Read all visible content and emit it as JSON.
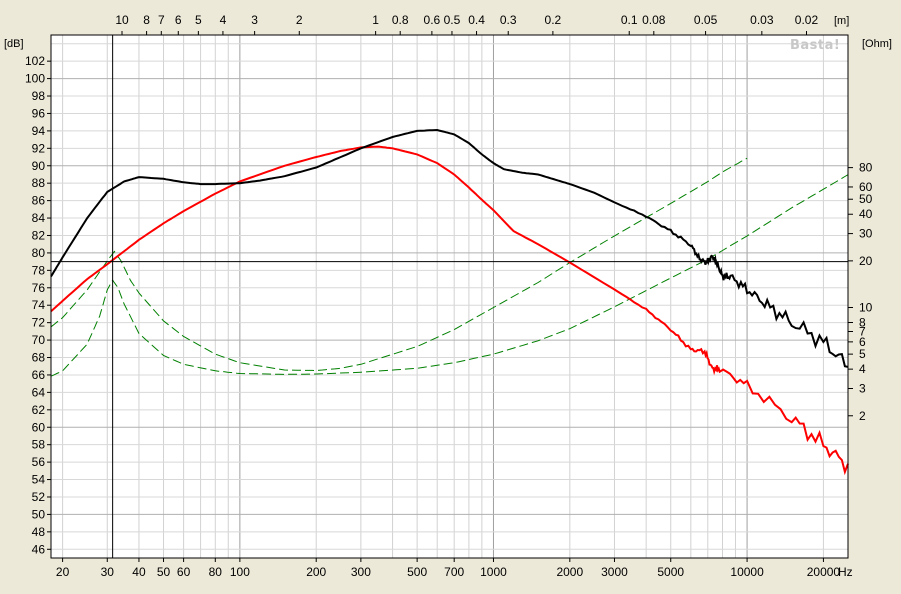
{
  "chart_data": {
    "type": "line",
    "title": "",
    "watermark": "Basta!",
    "x_axis": {
      "scale": "log",
      "range": [
        18,
        25000
      ],
      "unit_label": "Hz",
      "tick_labels": [
        "20",
        "30",
        "40",
        "50",
        "60",
        "80",
        "100",
        "200",
        "300",
        "500",
        "700",
        "1000",
        "2000",
        "3000",
        "5000",
        "10000",
        "20000"
      ],
      "tick_values": [
        20,
        30,
        40,
        50,
        60,
        80,
        100,
        200,
        300,
        500,
        700,
        1000,
        2000,
        3000,
        5000,
        10000,
        20000
      ]
    },
    "top_axis": {
      "unit_label": "[m]",
      "tick_labels": [
        "10",
        "8",
        "7",
        "6",
        "5",
        "4",
        "3",
        "2",
        "1",
        "0.8",
        "0.6",
        "0.5",
        "0.4",
        "0.3",
        "0.2",
        "0.1",
        "0.08",
        "0.05",
        "0.03",
        "0.02"
      ],
      "tick_values": [
        10,
        8,
        7,
        6,
        5,
        4,
        3,
        2,
        1,
        0.8,
        0.6,
        0.5,
        0.4,
        0.3,
        0.2,
        0.1,
        0.08,
        0.05,
        0.03,
        0.02
      ]
    },
    "y_axis_left": {
      "unit_label": "[dB]",
      "range": [
        45,
        105
      ],
      "tick_labels": [
        "46",
        "48",
        "50",
        "52",
        "54",
        "56",
        "58",
        "60",
        "62",
        "64",
        "66",
        "68",
        "70",
        "72",
        "74",
        "76",
        "78",
        "80",
        "82",
        "84",
        "86",
        "88",
        "90",
        "92",
        "94",
        "96",
        "98",
        "100",
        "102"
      ]
    },
    "y_axis_right": {
      "unit_label": "[Ohm]",
      "scale": "log",
      "tick_labels": [
        "2",
        "3",
        "4",
        "5",
        "6",
        "7",
        "8",
        "10",
        "20",
        "30",
        "40",
        "50",
        "60",
        "80"
      ],
      "tick_values": [
        2,
        3,
        4,
        5,
        6,
        7,
        8,
        10,
        20,
        30,
        40,
        50,
        60,
        80
      ]
    },
    "cursor": {
      "x": 31.5,
      "y": 79
    },
    "grid": true,
    "series": [
      {
        "color": "#000000",
        "style": "solid",
        "axis": "left",
        "noise": 0.35,
        "points": [
          [
            18,
            77.3
          ],
          [
            20,
            79.5
          ],
          [
            25,
            84
          ],
          [
            30,
            87
          ],
          [
            35,
            88.2
          ],
          [
            40,
            88.7
          ],
          [
            50,
            88.5
          ],
          [
            60,
            88.1
          ],
          [
            70,
            87.9
          ],
          [
            80,
            87.9
          ],
          [
            100,
            88
          ],
          [
            120,
            88.3
          ],
          [
            150,
            88.8
          ],
          [
            200,
            89.8
          ],
          [
            250,
            91
          ],
          [
            300,
            92
          ],
          [
            400,
            93.3
          ],
          [
            500,
            94
          ],
          [
            600,
            94.1
          ],
          [
            700,
            93.6
          ],
          [
            800,
            92.6
          ],
          [
            900,
            91.3
          ],
          [
            1000,
            90.3
          ],
          [
            1100,
            89.6
          ],
          [
            1300,
            89.2
          ],
          [
            1500,
            89
          ],
          [
            1800,
            88.3
          ],
          [
            2000,
            87.9
          ],
          [
            2500,
            86.9
          ],
          [
            3000,
            85.8
          ],
          [
            4000,
            84.2
          ],
          [
            5000,
            82.5
          ],
          [
            6000,
            80.9
          ],
          [
            6500,
            79.3
          ],
          [
            6900,
            78.9
          ],
          [
            7300,
            79.6
          ],
          [
            7600,
            78.8
          ],
          [
            8000,
            77.3
          ],
          [
            8600,
            77.3
          ],
          [
            10000,
            75.8
          ],
          [
            12000,
            74
          ],
          [
            15000,
            72
          ],
          [
            20000,
            69.8
          ],
          [
            25000,
            67
          ]
        ]
      },
      {
        "color": "#ff0000",
        "style": "solid",
        "axis": "left",
        "noise": 0.35,
        "points": [
          [
            18,
            73.3
          ],
          [
            20,
            74.5
          ],
          [
            25,
            77
          ],
          [
            30,
            78.7
          ],
          [
            40,
            81.5
          ],
          [
            50,
            83.4
          ],
          [
            60,
            84.8
          ],
          [
            80,
            86.8
          ],
          [
            100,
            88.2
          ],
          [
            150,
            90
          ],
          [
            200,
            91
          ],
          [
            250,
            91.7
          ],
          [
            300,
            92.1
          ],
          [
            350,
            92.2
          ],
          [
            400,
            92
          ],
          [
            500,
            91.3
          ],
          [
            600,
            90.3
          ],
          [
            700,
            89
          ],
          [
            800,
            87.5
          ],
          [
            900,
            86.1
          ],
          [
            1000,
            84.9
          ],
          [
            1200,
            82.5
          ],
          [
            1500,
            81
          ],
          [
            2000,
            78.9
          ],
          [
            3000,
            75.8
          ],
          [
            4000,
            73.5
          ],
          [
            5000,
            71.2
          ],
          [
            6000,
            68.9
          ],
          [
            6800,
            68.7
          ],
          [
            7300,
            66.7
          ],
          [
            7800,
            66.7
          ],
          [
            10000,
            64.8
          ],
          [
            15000,
            61
          ],
          [
            20000,
            58
          ],
          [
            25000,
            55.5
          ]
        ]
      },
      {
        "color": "#008000",
        "style": "dashed",
        "axis": "right",
        "points": [
          [
            18,
            3.6
          ],
          [
            20,
            3.9
          ],
          [
            25,
            5.8
          ],
          [
            28,
            8.8
          ],
          [
            30,
            13
          ],
          [
            31.5,
            15
          ],
          [
            33,
            13.5
          ],
          [
            35,
            10.5
          ],
          [
            40,
            6.8
          ],
          [
            50,
            4.9
          ],
          [
            60,
            4.3
          ],
          [
            80,
            3.9
          ],
          [
            100,
            3.75
          ],
          [
            150,
            3.7
          ],
          [
            200,
            3.72
          ],
          [
            300,
            3.82
          ],
          [
            500,
            4.05
          ],
          [
            700,
            4.4
          ],
          [
            1000,
            5
          ],
          [
            1500,
            6.1
          ],
          [
            2000,
            7.3
          ],
          [
            3000,
            10.1
          ],
          [
            5000,
            15.5
          ],
          [
            7000,
            20.5
          ],
          [
            10000,
            29
          ],
          [
            15000,
            44
          ],
          [
            20000,
            58
          ],
          [
            25000,
            72
          ]
        ]
      },
      {
        "color": "#008000",
        "style": "dashed",
        "axis": "right",
        "points": [
          [
            18,
            7.5
          ],
          [
            20,
            8.6
          ],
          [
            25,
            13
          ],
          [
            30,
            20
          ],
          [
            32,
            23
          ],
          [
            34,
            20
          ],
          [
            37,
            15
          ],
          [
            40,
            12.4
          ],
          [
            50,
            8.2
          ],
          [
            60,
            6.5
          ],
          [
            80,
            5
          ],
          [
            100,
            4.4
          ],
          [
            150,
            3.95
          ],
          [
            200,
            3.92
          ],
          [
            250,
            4.05
          ],
          [
            300,
            4.3
          ],
          [
            500,
            5.6
          ],
          [
            700,
            7.2
          ],
          [
            1000,
            10
          ],
          [
            1500,
            14.5
          ],
          [
            2000,
            19.5
          ],
          [
            3000,
            29
          ],
          [
            5000,
            47
          ],
          [
            7000,
            65
          ],
          [
            8000,
            75
          ],
          [
            10000,
            92
          ]
        ]
      }
    ]
  }
}
